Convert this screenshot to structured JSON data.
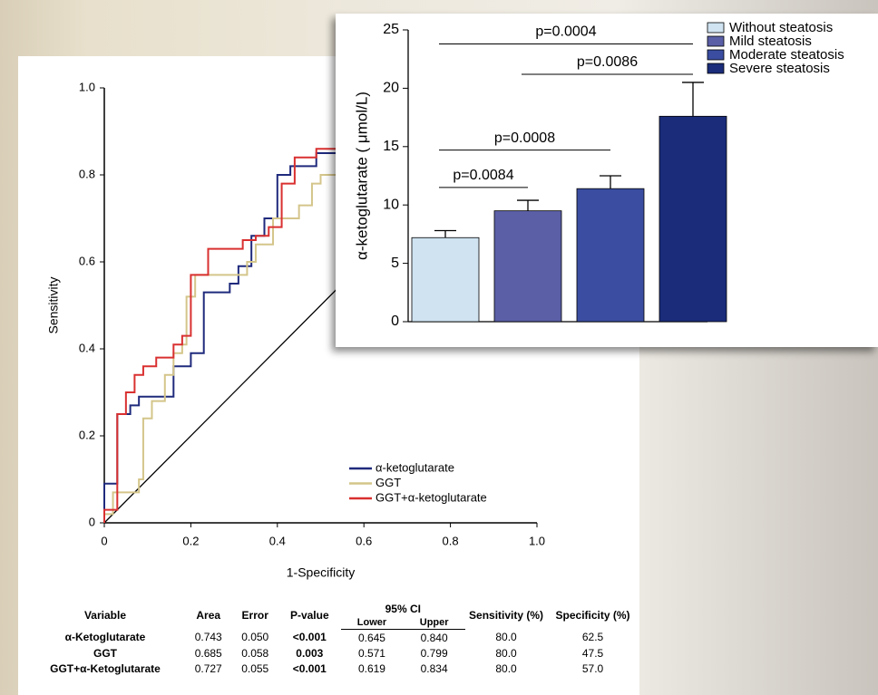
{
  "chart_data": [
    {
      "type": "line",
      "xlabel": "1-Specificity",
      "ylabel": "Sensitivity",
      "xlim": [
        0,
        1
      ],
      "ylim": [
        0,
        1
      ],
      "xticks": [
        0,
        0.2,
        0.4,
        0.6,
        0.8,
        {
          "value": 1,
          "label": "1.0"
        }
      ],
      "yticks": [
        0,
        0.2,
        0.4,
        0.6,
        0.8,
        {
          "value": 1,
          "label": "1.0"
        }
      ],
      "reference_line": true,
      "series": [
        {
          "name": "α-ketoglutarate",
          "color": "#1f2a7c",
          "x": [
            0,
            0,
            0.03,
            0.03,
            0.06,
            0.06,
            0.08,
            0.08,
            0.16,
            0.16,
            0.2,
            0.2,
            0.23,
            0.23,
            0.29,
            0.29,
            0.31,
            0.31,
            0.34,
            0.34,
            0.37,
            0.37,
            0.4,
            0.4,
            0.43,
            0.43,
            0.49,
            0.49,
            0.55
          ],
          "values": [
            0,
            0.09,
            0.09,
            0.25,
            0.25,
            0.27,
            0.27,
            0.29,
            0.29,
            0.36,
            0.36,
            0.39,
            0.39,
            0.53,
            0.53,
            0.55,
            0.55,
            0.59,
            0.59,
            0.66,
            0.66,
            0.7,
            0.7,
            0.8,
            0.8,
            0.82,
            0.82,
            0.85,
            0.85
          ]
        },
        {
          "name": "GGT",
          "color": "#d4c58a",
          "x": [
            0,
            0,
            0.02,
            0.02,
            0.08,
            0.08,
            0.09,
            0.09,
            0.11,
            0.11,
            0.14,
            0.14,
            0.16,
            0.16,
            0.18,
            0.18,
            0.19,
            0.19,
            0.21,
            0.21,
            0.33,
            0.33,
            0.35,
            0.35,
            0.39,
            0.39,
            0.45,
            0.45,
            0.48,
            0.48,
            0.5,
            0.5,
            0.54
          ],
          "values": [
            0,
            0.02,
            0.02,
            0.07,
            0.07,
            0.1,
            0.1,
            0.24,
            0.24,
            0.28,
            0.28,
            0.34,
            0.34,
            0.39,
            0.39,
            0.41,
            0.41,
            0.52,
            0.52,
            0.57,
            0.57,
            0.6,
            0.6,
            0.64,
            0.64,
            0.7,
            0.7,
            0.73,
            0.73,
            0.78,
            0.78,
            0.8,
            0.8
          ]
        },
        {
          "name": "GGT+α-ketoglutarate",
          "color": "#d93030",
          "x": [
            0,
            0,
            0.03,
            0.03,
            0.05,
            0.05,
            0.07,
            0.07,
            0.09,
            0.09,
            0.12,
            0.12,
            0.16,
            0.16,
            0.18,
            0.18,
            0.2,
            0.2,
            0.24,
            0.24,
            0.32,
            0.32,
            0.35,
            0.35,
            0.38,
            0.38,
            0.41,
            0.41,
            0.44,
            0.44,
            0.49,
            0.49,
            0.54
          ],
          "values": [
            0,
            0.03,
            0.03,
            0.25,
            0.25,
            0.3,
            0.3,
            0.34,
            0.34,
            0.36,
            0.36,
            0.38,
            0.38,
            0.41,
            0.41,
            0.43,
            0.43,
            0.57,
            0.57,
            0.63,
            0.63,
            0.65,
            0.65,
            0.66,
            0.66,
            0.68,
            0.68,
            0.78,
            0.78,
            0.84,
            0.84,
            0.86,
            0.86
          ]
        }
      ]
    },
    {
      "type": "bar",
      "ylabel": "α-ketoglutarate ( μmol/L)",
      "categories": [
        "Without steatosis",
        "Mild steatosis",
        "Moderate steatosis",
        "Severe steatosis"
      ],
      "colors": [
        "#cfe3f1",
        "#5a5fa6",
        "#3a4da0",
        "#1a2c7a"
      ],
      "values": [
        7.2,
        9.5,
        11.4,
        17.6
      ],
      "errors": [
        0.6,
        0.9,
        1.1,
        2.9
      ],
      "ylim": [
        0,
        25
      ],
      "yticks": [
        0,
        5,
        10,
        15,
        20,
        25
      ],
      "annotations": [
        {
          "text": "p=0.0004",
          "from": 0,
          "to": 3,
          "y": 23.8
        },
        {
          "text": "p=0.0086",
          "from": 1,
          "to": 3,
          "y": 21.2
        },
        {
          "text": "p=0.0008",
          "from": 0,
          "to": 2,
          "y": 14.7
        },
        {
          "text": "p=0.0084",
          "from": 0,
          "to": 1,
          "y": 11.5
        }
      ]
    }
  ],
  "table": {
    "group": "95% CI",
    "columns": [
      "Variable",
      "Area",
      "Error",
      "P-value",
      "Lower",
      "Upper",
      "Sensitivity (%)",
      "Specificity (%)"
    ],
    "rows": [
      [
        "α-Ketoglutarate",
        "0.743",
        "0.050",
        "<0.001",
        "0.645",
        "0.840",
        "80.0",
        "62.5"
      ],
      [
        "GGT",
        "0.685",
        "0.058",
        "0.003",
        "0.571",
        "0.799",
        "80.0",
        "47.5"
      ],
      [
        "GGT+α-Ketoglutarate",
        "0.727",
        "0.055",
        "<0.001",
        "0.619",
        "0.834",
        "80.0",
        "57.0"
      ]
    ]
  }
}
